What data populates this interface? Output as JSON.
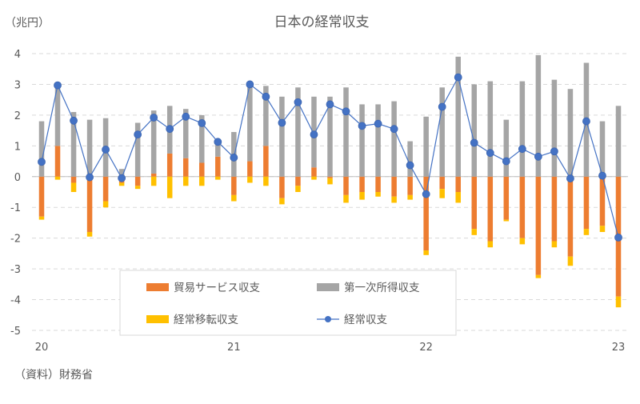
{
  "chart_data": {
    "type": "bar",
    "title": "日本の経常収支",
    "unit_label": "（兆円）",
    "source": "（資料）財務省",
    "ylim": [
      -5,
      4
    ],
    "yticks": [
      4,
      3,
      2,
      1,
      0,
      -1,
      -2,
      -3,
      -4,
      -5
    ],
    "grid": true,
    "legend_position": "bottom-center",
    "x_tick_labels": [
      {
        "label": "20",
        "index": 0
      },
      {
        "label": "21",
        "index": 12
      },
      {
        "label": "22",
        "index": 24
      },
      {
        "label": "23",
        "index": 36
      }
    ],
    "series": [
      {
        "name": "貿易サービス収支",
        "kind": "bar",
        "color": "#ED7D31",
        "values": [
          -1.3,
          1.0,
          -0.2,
          -1.8,
          -0.8,
          -0.2,
          -0.3,
          0.1,
          0.75,
          0.6,
          0.45,
          0.65,
          -0.6,
          0.5,
          1.0,
          -0.7,
          -0.3,
          0.3,
          -0.05,
          -0.6,
          -0.5,
          -0.5,
          -0.65,
          -0.6,
          -2.4,
          -0.4,
          -0.5,
          -1.7,
          -2.1,
          -1.4,
          -2.0,
          -3.2,
          -2.1,
          -2.6,
          -1.7,
          -1.6,
          -3.9
        ]
      },
      {
        "name": "第一次所得収支",
        "kind": "bar",
        "color": "#A5A5A5",
        "values": [
          1.8,
          1.9,
          2.1,
          1.85,
          1.9,
          0.25,
          1.75,
          2.05,
          1.55,
          1.6,
          1.55,
          0.5,
          1.45,
          2.5,
          1.95,
          2.6,
          2.9,
          2.3,
          2.6,
          2.9,
          2.35,
          2.35,
          2.45,
          1.15,
          1.95,
          2.9,
          3.9,
          3.0,
          3.1,
          1.85,
          3.1,
          3.95,
          3.15,
          2.85,
          3.7,
          1.8,
          2.3
        ]
      },
      {
        "name": "経常移転収支",
        "kind": "bar",
        "color": "#FFC000",
        "values": [
          -0.1,
          -0.1,
          -0.3,
          -0.15,
          -0.2,
          -0.1,
          -0.1,
          -0.3,
          -0.7,
          -0.3,
          -0.3,
          -0.1,
          -0.2,
          -0.2,
          -0.3,
          -0.2,
          -0.2,
          -0.1,
          -0.2,
          -0.25,
          -0.25,
          -0.15,
          -0.2,
          -0.15,
          -0.15,
          -0.3,
          -0.35,
          -0.2,
          -0.2,
          -0.05,
          -0.2,
          -0.1,
          -0.2,
          -0.3,
          -0.2,
          -0.2,
          -0.35
        ]
      },
      {
        "name": "経常収支",
        "kind": "line",
        "color": "#4472C4",
        "values": [
          0.48,
          2.97,
          1.82,
          -0.02,
          0.88,
          -0.05,
          1.37,
          1.92,
          1.55,
          1.95,
          1.74,
          1.13,
          0.62,
          3.0,
          2.6,
          1.75,
          2.42,
          1.37,
          2.35,
          2.12,
          1.65,
          1.72,
          1.55,
          0.37,
          -0.57,
          2.27,
          3.23,
          1.1,
          0.77,
          0.5,
          0.9,
          0.65,
          0.82,
          -0.06,
          1.8,
          0.03,
          -1.98
        ]
      }
    ]
  }
}
